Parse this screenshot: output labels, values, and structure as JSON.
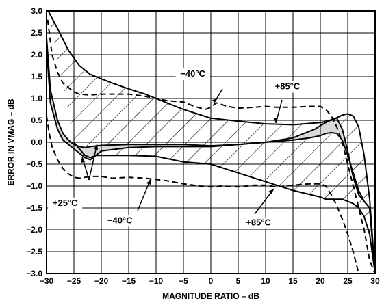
{
  "chart_data": {
    "type": "line",
    "xlabel": "MAGNITUDE RATIO – dB",
    "ylabel": "ERROR IN VMAG – dB",
    "xlim": [
      -30,
      30
    ],
    "ylim": [
      -3.0,
      3.0
    ],
    "x_ticks": [
      -30,
      -25,
      -20,
      -15,
      -10,
      -5,
      0,
      5,
      10,
      15,
      20,
      25,
      30
    ],
    "x_tick_labels": [
      "−30",
      "−25",
      "−20",
      "−15",
      "−10",
      "−5",
      "0",
      "5",
      "10",
      "15",
      "20",
      "25",
      "30"
    ],
    "y_ticks": [
      3.0,
      2.5,
      2.0,
      1.5,
      1.0,
      0.5,
      0.0,
      -0.5,
      -1.0,
      -1.5,
      -2.0,
      -2.5,
      -3.0
    ],
    "y_tick_labels": [
      "3.0",
      "2.5",
      "2.0",
      "1.5",
      "1.0",
      "0.5",
      "0.0",
      "−0.5",
      "−1.0",
      "−1.5",
      "−2.0",
      "−2.5",
      "−3.0"
    ],
    "grid": true,
    "series": [
      {
        "style": "solid",
        "x": [
          -29.7,
          -28,
          -26,
          -24,
          -22,
          -20,
          -18,
          -15,
          -12,
          -10,
          -5,
          0,
          5,
          10,
          15,
          20,
          22,
          24,
          25,
          26,
          27,
          28,
          29,
          30
        ],
        "y": [
          3.0,
          2.6,
          2.1,
          1.75,
          1.55,
          1.45,
          1.35,
          1.22,
          1.1,
          1.0,
          0.75,
          0.55,
          0.48,
          0.42,
          0.4,
          0.45,
          0.5,
          0.62,
          0.65,
          0.6,
          0.35,
          -0.3,
          -1.3,
          -3.0
        ]
      },
      {
        "style": "solid",
        "x": [
          -30,
          -29.3,
          -28,
          -27,
          -26,
          -25,
          -24,
          -23,
          -22,
          -20,
          -15,
          -10,
          -5,
          0,
          5,
          10,
          15,
          17,
          19,
          20,
          21,
          22,
          23,
          24,
          25,
          26,
          27,
          28,
          29,
          30
        ],
        "y": [
          2.4,
          1.2,
          0.5,
          0.2,
          0.05,
          -0.05,
          -0.1,
          -0.12,
          -0.1,
          -0.07,
          -0.05,
          -0.05,
          -0.05,
          -0.08,
          -0.05,
          0.0,
          0.1,
          0.2,
          0.3,
          0.38,
          0.45,
          0.52,
          0.55,
          0.3,
          -0.2,
          -0.8,
          -1.2,
          -1.35,
          -1.5,
          -3.0
        ]
      },
      {
        "style": "solid",
        "x": [
          -30,
          -29.3,
          -28,
          -27,
          -26,
          -25,
          -24,
          -23,
          -22,
          -21,
          -20,
          -15,
          -10,
          -5,
          0,
          5,
          10,
          15,
          18,
          20,
          21,
          22,
          23,
          24,
          25,
          26,
          27,
          28,
          29,
          30
        ],
        "y": [
          2.2,
          0.9,
          0.3,
          0.05,
          -0.05,
          -0.15,
          -0.25,
          -0.35,
          -0.4,
          -0.3,
          -0.2,
          -0.12,
          -0.1,
          -0.1,
          -0.1,
          -0.05,
          0.0,
          0.05,
          0.1,
          0.15,
          0.2,
          0.22,
          0.2,
          0.05,
          -0.3,
          -0.7,
          -1.1,
          -1.35,
          -1.5,
          -3.0
        ]
      },
      {
        "style": "solid",
        "x": [
          -25,
          -24,
          -23,
          -22,
          -21,
          -20,
          -15,
          -10,
          -5,
          0,
          5,
          10,
          15,
          20,
          21,
          22,
          23,
          24,
          25,
          26,
          27,
          28,
          29,
          30
        ],
        "y": [
          0.0,
          -0.15,
          -0.3,
          -0.35,
          -0.3,
          -0.3,
          -0.3,
          -0.32,
          -0.45,
          -0.5,
          -0.7,
          -0.9,
          -1.1,
          -1.25,
          -1.3,
          -1.3,
          -1.3,
          -1.3,
          -1.35,
          -1.4,
          -1.5,
          -1.7,
          -2.1,
          -3.0
        ]
      },
      {
        "style": "dashed",
        "x": [
          -29.8,
          -29,
          -28,
          -27,
          -26,
          -25,
          -24,
          -22,
          -20,
          -15,
          -12,
          -10,
          -8,
          -5,
          -3,
          -1,
          0,
          1,
          3,
          5,
          8,
          10,
          12,
          15,
          18,
          20,
          21,
          22,
          23,
          24,
          25,
          26,
          27,
          28,
          29,
          30
        ],
        "y": [
          2.8,
          2.0,
          1.6,
          1.35,
          1.25,
          1.15,
          1.1,
          1.08,
          1.1,
          1.1,
          1.05,
          1.0,
          0.95,
          0.92,
          0.82,
          0.75,
          0.8,
          0.9,
          0.82,
          0.78,
          0.8,
          0.82,
          0.8,
          0.8,
          0.82,
          0.82,
          0.75,
          0.6,
          0.35,
          0.0,
          -0.5,
          -1.0,
          -1.5,
          -2.0,
          -2.7,
          -3.0
        ]
      },
      {
        "style": "dashed",
        "x": [
          -30,
          -29.5,
          -29,
          -28,
          -27,
          -26,
          -25,
          -24,
          -23,
          -22,
          -20,
          -18,
          -15,
          -12,
          -10,
          -8,
          -5,
          -2,
          0,
          2,
          5,
          8,
          10,
          12,
          15,
          18,
          20,
          21,
          22,
          23,
          24,
          25,
          26,
          27
        ],
        "y": [
          0.6,
          0.2,
          -0.1,
          -0.4,
          -0.6,
          -0.72,
          -0.8,
          -0.82,
          -0.8,
          -0.78,
          -0.78,
          -0.82,
          -0.8,
          -0.82,
          -0.85,
          -0.88,
          -0.95,
          -1.0,
          -1.02,
          -1.0,
          -1.02,
          -0.98,
          -0.98,
          -1.02,
          -0.98,
          -0.95,
          -0.95,
          -1.0,
          -1.2,
          -1.45,
          -1.75,
          -2.1,
          -2.5,
          -3.0
        ]
      }
    ],
    "annotations": [
      {
        "text": "−40°C",
        "x": -3.3,
        "y": 1.5
      },
      {
        "text": "+85°C",
        "x": 14,
        "y": 1.21
      },
      {
        "text": "+25°C",
        "x": -26.6,
        "y": -1.45
      },
      {
        "text": "−40°C",
        "x": -16.6,
        "y": -1.85
      },
      {
        "text": "+85°C",
        "x": 8.7,
        "y": -1.9
      }
    ]
  }
}
